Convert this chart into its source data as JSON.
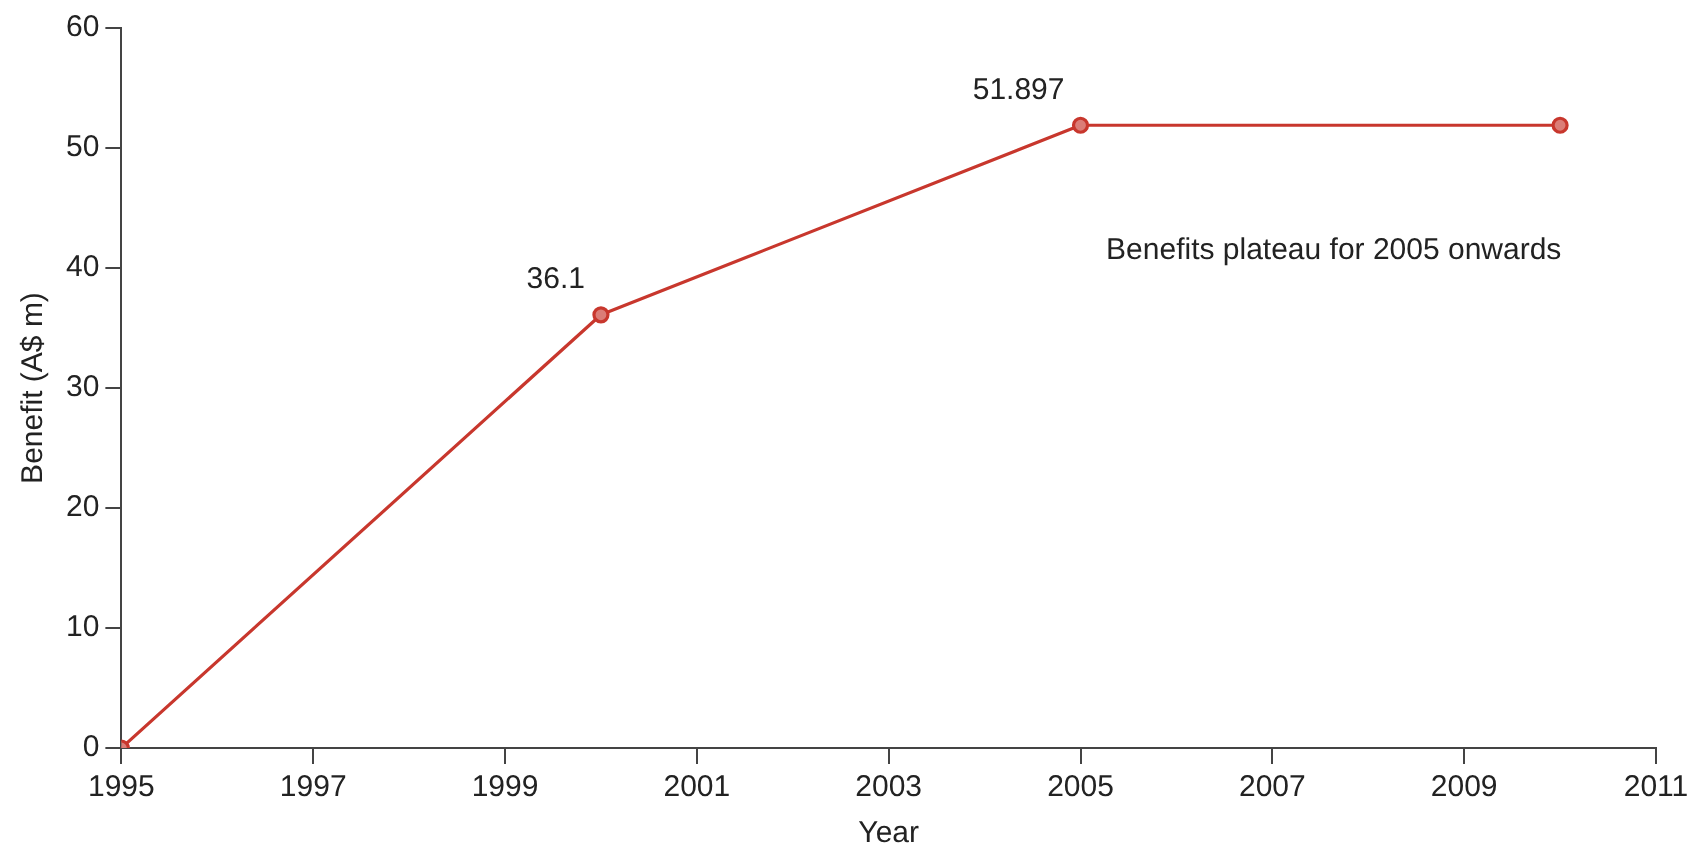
{
  "chart_data": {
    "type": "line",
    "xlabel": "Year",
    "ylabel": "Benefit (A$ m)",
    "x": [
      1995,
      2000,
      2005,
      2010
    ],
    "series": [
      {
        "color": "#c8372d",
        "values": [
          0,
          36.1,
          51.897,
          51.897
        ],
        "value_labels": [
          null,
          "36.1",
          "51.897",
          null
        ]
      }
    ],
    "xlim": [
      1995,
      2011
    ],
    "xticks": [
      1995,
      1997,
      1999,
      2001,
      2003,
      2005,
      2007,
      2009,
      2011
    ],
    "ylim": [
      0,
      60
    ],
    "yticks": [
      0,
      10,
      20,
      30,
      40,
      50,
      60
    ],
    "grid": false,
    "legend": false,
    "marker": "circle",
    "line_style": "solid",
    "annotations": [
      "Benefits plateau for 2005 onwards"
    ]
  }
}
